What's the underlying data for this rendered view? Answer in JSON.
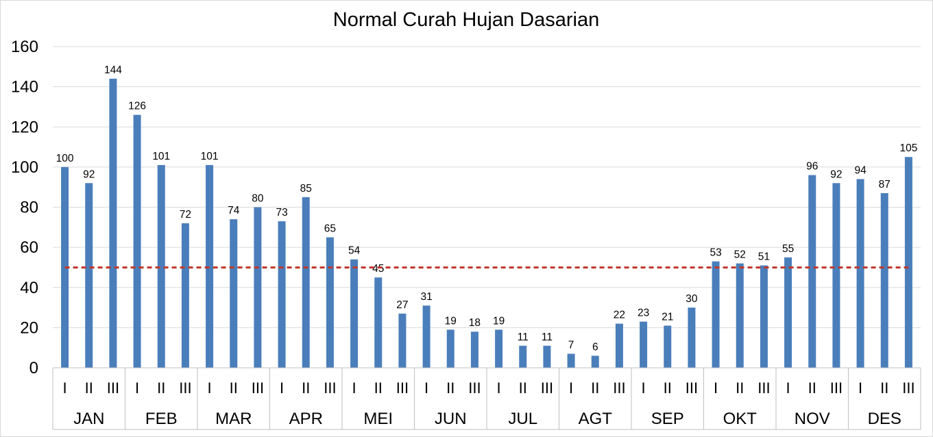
{
  "chart_data": {
    "type": "bar",
    "title": "Normal Curah Hujan Dasarian",
    "xlabel": "",
    "ylabel": "",
    "ylim": [
      0,
      160
    ],
    "yticks": [
      0,
      20,
      40,
      60,
      80,
      100,
      120,
      140,
      160
    ],
    "grid": true,
    "legend": "none",
    "months": [
      "JAN",
      "FEB",
      "MAR",
      "APR",
      "MEI",
      "JUN",
      "JUL",
      "AGT",
      "SEP",
      "OKT",
      "NOV",
      "DES"
    ],
    "dekads": [
      "I",
      "II",
      "III"
    ],
    "values": [
      100,
      92,
      144,
      126,
      101,
      72,
      101,
      74,
      80,
      73,
      85,
      65,
      54,
      45,
      27,
      31,
      19,
      18,
      19,
      11,
      11,
      7,
      6,
      22,
      23,
      21,
      30,
      53,
      52,
      51,
      55,
      96,
      92,
      94,
      87,
      105
    ],
    "reference_line": {
      "value": 50,
      "style": "dashed"
    },
    "colors": {
      "bar": "#4a7ebb",
      "reference": "#c0392b",
      "grid": "#d9d9d9"
    }
  }
}
